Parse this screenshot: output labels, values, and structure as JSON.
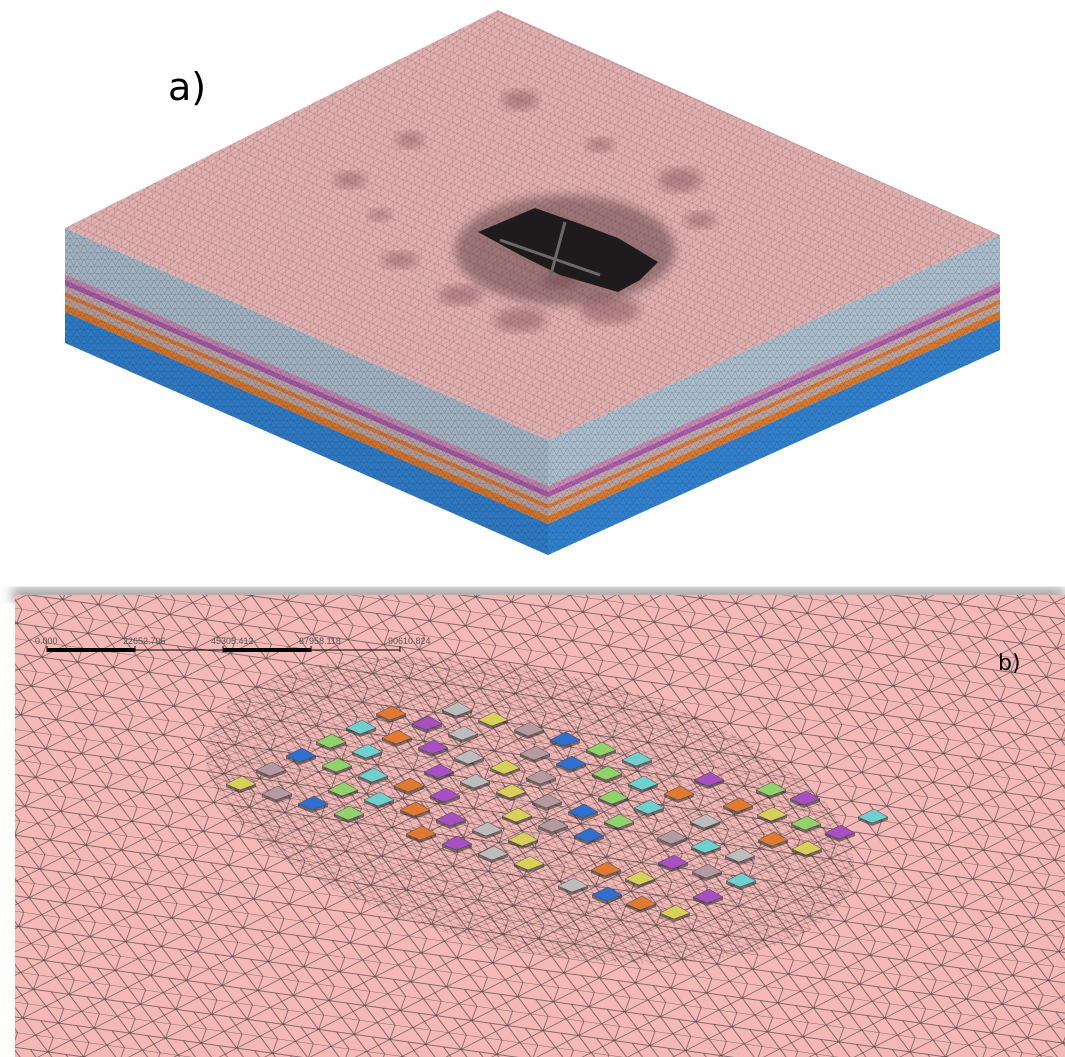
{
  "panels": [
    {
      "label": "a)"
    },
    {
      "label": "b)",
      "scale_bar": {
        "ticks": [
          "0.000",
          "22652.706",
          "45305.412",
          "67958.118",
          "90610.824"
        ]
      }
    }
  ]
}
